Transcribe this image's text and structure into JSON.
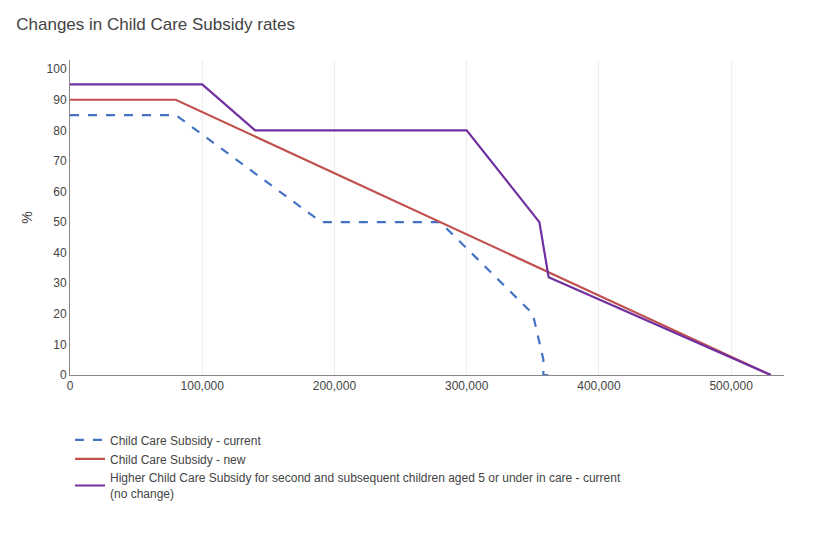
{
  "chart_data": {
    "type": "line",
    "title": "Changes in Child Care Subsidy rates",
    "y_label": "%",
    "xlim": [
      0,
      540000
    ],
    "ylim": [
      0,
      103
    ],
    "xticks": [
      0,
      {
        "value": 100000,
        "label": "100,000"
      },
      {
        "value": 200000,
        "label": "200,000"
      },
      {
        "value": 300000,
        "label": "300,000"
      },
      {
        "value": 400000,
        "label": "400,000"
      },
      {
        "value": 500000,
        "label": "500,000"
      }
    ],
    "yticks": [
      0,
      10,
      20,
      30,
      40,
      50,
      60,
      70,
      80,
      90,
      100
    ],
    "grid": "x",
    "legend": "bottom",
    "series": [
      {
        "name": "Child Care Subsidy - current",
        "color": "#4472C4",
        "line_style": "dashed",
        "x": [
          0,
          80000,
          190000,
          190000,
          280000,
          280000,
          350000,
          350000,
          358000,
          358000,
          362000
        ],
        "values": [
          85,
          85,
          50,
          50,
          50,
          50,
          20,
          20,
          5,
          0,
          0
        ]
      },
      {
        "name": "Child Care Subsidy - new",
        "color": "#C0504D",
        "line_style": "solid",
        "x": [
          0,
          80000,
          530000
        ],
        "values": [
          90,
          90,
          0
        ]
      },
      {
        "name": "Higher Child Care Subsidy for second and subsequent children aged 5 or under in care - current\n(no change)",
        "color": "#7030A0",
        "line_style": "solid",
        "x": [
          0,
          100000,
          140000,
          140000,
          300000,
          300000,
          355000,
          355000,
          362000,
          362000,
          530000
        ],
        "values": [
          95,
          95,
          80,
          80,
          80,
          80,
          50,
          50,
          32,
          32,
          0
        ]
      }
    ]
  }
}
